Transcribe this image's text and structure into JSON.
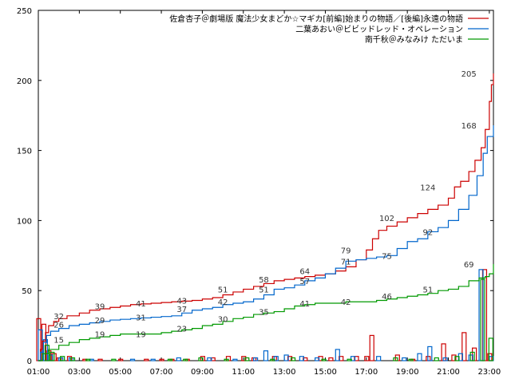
{
  "chart_data": {
    "type": "line",
    "title": "",
    "xlabel": "",
    "ylabel": "",
    "xlim": [
      1,
      23.2
    ],
    "ylim": [
      0,
      250
    ],
    "grid": false,
    "legend_position": "top-right",
    "x_ticks": [
      "01:00",
      "03:00",
      "05:00",
      "07:00",
      "09:00",
      "11:00",
      "13:00",
      "15:00",
      "17:00",
      "19:00",
      "21:00",
      "23:00"
    ],
    "y_ticks": [
      "0",
      "50",
      "100",
      "150",
      "200",
      "250"
    ],
    "series": [
      {
        "name": "佐倉杏子＠劇場版 魔法少女まどか☆マギカ[前編]始まりの物語／[後編]永遠の物語",
        "color": "#cc0000",
        "cumulative": [
          [
            1.0,
            0
          ],
          [
            1.1,
            8
          ],
          [
            1.2,
            14
          ],
          [
            1.35,
            20
          ],
          [
            1.5,
            25
          ],
          [
            1.75,
            28
          ],
          [
            2.0,
            30
          ],
          [
            2.4,
            32
          ],
          [
            3.0,
            34
          ],
          [
            3.5,
            36
          ],
          [
            4.0,
            37
          ],
          [
            4.5,
            38
          ],
          [
            5.0,
            39
          ],
          [
            5.5,
            40
          ],
          [
            6.0,
            40.5
          ],
          [
            6.5,
            41
          ],
          [
            7.0,
            41.5
          ],
          [
            7.5,
            42
          ],
          [
            8.0,
            42.5
          ],
          [
            8.5,
            43
          ],
          [
            9.0,
            44
          ],
          [
            9.5,
            45
          ],
          [
            10.0,
            47
          ],
          [
            10.5,
            49
          ],
          [
            11.0,
            51
          ],
          [
            11.5,
            53
          ],
          [
            12.0,
            55
          ],
          [
            12.5,
            57
          ],
          [
            13.0,
            58
          ],
          [
            13.5,
            59
          ],
          [
            14.0,
            60
          ],
          [
            14.5,
            61
          ],
          [
            15.0,
            62
          ],
          [
            15.5,
            64
          ],
          [
            16.0,
            67
          ],
          [
            16.5,
            72
          ],
          [
            17.0,
            79
          ],
          [
            17.3,
            87
          ],
          [
            17.6,
            93
          ],
          [
            18.0,
            96
          ],
          [
            18.5,
            99
          ],
          [
            19.0,
            102
          ],
          [
            19.5,
            105
          ],
          [
            20.0,
            108
          ],
          [
            20.5,
            111
          ],
          [
            21.0,
            116
          ],
          [
            21.3,
            124
          ],
          [
            21.6,
            128
          ],
          [
            22.0,
            135
          ],
          [
            22.3,
            143
          ],
          [
            22.6,
            152
          ],
          [
            22.8,
            165
          ],
          [
            23.0,
            185
          ],
          [
            23.1,
            197
          ],
          [
            23.2,
            205
          ]
        ],
        "hourly": [
          [
            1.0,
            30
          ],
          [
            1.25,
            26
          ],
          [
            1.5,
            7
          ],
          [
            1.75,
            5
          ],
          [
            2.0,
            2
          ],
          [
            2.5,
            3
          ],
          [
            3.25,
            1
          ],
          [
            4.0,
            1
          ],
          [
            5.0,
            1
          ],
          [
            6.25,
            1
          ],
          [
            7.0,
            1
          ],
          [
            7.5,
            1
          ],
          [
            8.25,
            1
          ],
          [
            9.0,
            3
          ],
          [
            9.5,
            2
          ],
          [
            10.25,
            3
          ],
          [
            11.0,
            3
          ],
          [
            11.5,
            2
          ],
          [
            12.5,
            3
          ],
          [
            13.25,
            3
          ],
          [
            14.0,
            2
          ],
          [
            14.75,
            3
          ],
          [
            15.25,
            2
          ],
          [
            15.75,
            3
          ],
          [
            16.5,
            3
          ],
          [
            17.0,
            3
          ],
          [
            17.25,
            18
          ],
          [
            18.5,
            4
          ],
          [
            19.25,
            1
          ],
          [
            20.0,
            3
          ],
          [
            20.75,
            12
          ],
          [
            21.25,
            4
          ],
          [
            21.75,
            20
          ],
          [
            22.25,
            9
          ],
          [
            22.75,
            65
          ],
          [
            23.0,
            5
          ]
        ],
        "peak_labels": [
          [
            2.0,
            32
          ],
          [
            4.0,
            39
          ],
          [
            6.0,
            41
          ],
          [
            8.0,
            43
          ],
          [
            10.0,
            51
          ],
          [
            12.0,
            58
          ],
          [
            14.0,
            64
          ],
          [
            16.0,
            79
          ],
          [
            18.0,
            102
          ],
          [
            20.0,
            124
          ],
          [
            22.0,
            205
          ]
        ],
        "labels_text": [
          "32",
          "39",
          "41",
          "43",
          "51",
          "58",
          "64",
          "79",
          "102",
          "124",
          "205"
        ]
      },
      {
        "name": "二葉あおい＠ビビッドレッド・オペレーション",
        "color": "#0066cc",
        "cumulative": [
          [
            1.0,
            0
          ],
          [
            1.1,
            6
          ],
          [
            1.25,
            13
          ],
          [
            1.4,
            18
          ],
          [
            1.6,
            21
          ],
          [
            2.0,
            23
          ],
          [
            2.5,
            25
          ],
          [
            3.0,
            26
          ],
          [
            3.5,
            27
          ],
          [
            4.0,
            28
          ],
          [
            4.5,
            29
          ],
          [
            5.0,
            29.5
          ],
          [
            5.5,
            30
          ],
          [
            6.0,
            30.5
          ],
          [
            6.5,
            31
          ],
          [
            7.0,
            31.5
          ],
          [
            7.5,
            32
          ],
          [
            8.0,
            34
          ],
          [
            8.5,
            36
          ],
          [
            9.0,
            37
          ],
          [
            9.5,
            38
          ],
          [
            10.0,
            40
          ],
          [
            10.5,
            41
          ],
          [
            11.0,
            42
          ],
          [
            11.5,
            44
          ],
          [
            12.0,
            47
          ],
          [
            12.5,
            51
          ],
          [
            13.0,
            52
          ],
          [
            13.5,
            54
          ],
          [
            14.0,
            57
          ],
          [
            14.5,
            59
          ],
          [
            15.0,
            62
          ],
          [
            15.5,
            66
          ],
          [
            16.0,
            71
          ],
          [
            16.5,
            72
          ],
          [
            17.0,
            73
          ],
          [
            17.5,
            74
          ],
          [
            18.0,
            75
          ],
          [
            18.5,
            80
          ],
          [
            19.0,
            85
          ],
          [
            19.5,
            87
          ],
          [
            20.0,
            92
          ],
          [
            20.5,
            95
          ],
          [
            21.0,
            100
          ],
          [
            21.5,
            108
          ],
          [
            22.0,
            118
          ],
          [
            22.4,
            132
          ],
          [
            22.7,
            148
          ],
          [
            22.9,
            160
          ],
          [
            23.2,
            168
          ]
        ],
        "hourly": [
          [
            1.0,
            22
          ],
          [
            1.25,
            15
          ],
          [
            1.5,
            4
          ],
          [
            2.0,
            2
          ],
          [
            2.5,
            2
          ],
          [
            3.5,
            1
          ],
          [
            5.5,
            1
          ],
          [
            6.5,
            1
          ],
          [
            7.75,
            2
          ],
          [
            9.25,
            2
          ],
          [
            10.5,
            1
          ],
          [
            11.5,
            2
          ],
          [
            12.0,
            7
          ],
          [
            12.5,
            3
          ],
          [
            13.0,
            4
          ],
          [
            13.75,
            3
          ],
          [
            14.5,
            2
          ],
          [
            15.5,
            8
          ],
          [
            16.25,
            3
          ],
          [
            17.5,
            3
          ],
          [
            18.75,
            2
          ],
          [
            19.5,
            5
          ],
          [
            20.0,
            10
          ],
          [
            20.75,
            2
          ],
          [
            21.5,
            5
          ],
          [
            22.0,
            4
          ],
          [
            22.5,
            65
          ],
          [
            23.0,
            3
          ]
        ],
        "peak_labels": [
          [
            2.0,
            26
          ],
          [
            4.0,
            29
          ],
          [
            6.0,
            31
          ],
          [
            8.0,
            37
          ],
          [
            10.0,
            42
          ],
          [
            12.0,
            51
          ],
          [
            14.0,
            57
          ],
          [
            16.0,
            71
          ],
          [
            18.0,
            75
          ],
          [
            20.0,
            92
          ],
          [
            22.0,
            168
          ]
        ],
        "labels_text": [
          "26",
          "29",
          "31",
          "37",
          "42",
          "51",
          "57",
          "71",
          "75",
          "92",
          "168"
        ]
      },
      {
        "name": "南千秋＠みなみけ ただいま",
        "color": "#009900",
        "cumulative": [
          [
            1.0,
            0
          ],
          [
            1.2,
            5
          ],
          [
            1.5,
            8
          ],
          [
            2.0,
            11
          ],
          [
            2.5,
            13
          ],
          [
            3.0,
            15
          ],
          [
            3.5,
            16
          ],
          [
            4.0,
            17
          ],
          [
            4.5,
            18
          ],
          [
            5.0,
            19
          ],
          [
            5.5,
            19
          ],
          [
            6.0,
            19
          ],
          [
            6.5,
            19
          ],
          [
            7.0,
            20
          ],
          [
            7.5,
            21
          ],
          [
            8.0,
            22
          ],
          [
            8.5,
            23
          ],
          [
            9.0,
            25
          ],
          [
            9.5,
            26
          ],
          [
            10.0,
            28
          ],
          [
            10.5,
            30
          ],
          [
            11.0,
            31
          ],
          [
            11.5,
            33
          ],
          [
            12.0,
            34
          ],
          [
            12.5,
            35
          ],
          [
            13.0,
            37
          ],
          [
            13.5,
            39
          ],
          [
            14.0,
            40
          ],
          [
            14.5,
            41
          ],
          [
            15.0,
            41
          ],
          [
            15.5,
            41
          ],
          [
            16.0,
            42
          ],
          [
            16.5,
            42
          ],
          [
            17.0,
            42
          ],
          [
            17.5,
            43
          ],
          [
            18.0,
            44
          ],
          [
            18.5,
            45
          ],
          [
            19.0,
            46
          ],
          [
            19.5,
            47
          ],
          [
            20.0,
            48
          ],
          [
            20.5,
            50
          ],
          [
            21.0,
            51
          ],
          [
            21.5,
            53
          ],
          [
            22.0,
            57
          ],
          [
            22.5,
            59
          ],
          [
            22.8,
            60
          ],
          [
            23.0,
            62
          ],
          [
            23.2,
            69
          ]
        ],
        "hourly": [
          [
            1.25,
            11
          ],
          [
            1.5,
            6
          ],
          [
            2.0,
            3
          ],
          [
            2.5,
            2
          ],
          [
            3.25,
            1
          ],
          [
            4.5,
            1
          ],
          [
            7.25,
            1
          ],
          [
            8.0,
            1
          ],
          [
            8.75,
            2
          ],
          [
            10.0,
            1
          ],
          [
            11.0,
            2
          ],
          [
            12.25,
            1
          ],
          [
            13.25,
            2
          ],
          [
            14.75,
            1
          ],
          [
            16.0,
            1
          ],
          [
            18.25,
            2
          ],
          [
            19.0,
            1
          ],
          [
            20.25,
            2
          ],
          [
            21.25,
            3
          ],
          [
            22.0,
            6
          ],
          [
            22.5,
            58
          ],
          [
            22.9,
            16
          ]
        ],
        "peak_labels": [
          [
            2.0,
            15
          ],
          [
            4.0,
            19
          ],
          [
            6.0,
            19
          ],
          [
            8.0,
            23
          ],
          [
            10.0,
            30
          ],
          [
            12.0,
            35
          ],
          [
            14.0,
            41
          ],
          [
            16.0,
            42
          ],
          [
            18.0,
            46
          ],
          [
            20.0,
            51
          ],
          [
            22.0,
            69
          ]
        ],
        "labels_text": [
          "15",
          "19",
          "19",
          "23",
          "30",
          "35",
          "41",
          "42",
          "46",
          "51",
          "69"
        ]
      }
    ]
  }
}
